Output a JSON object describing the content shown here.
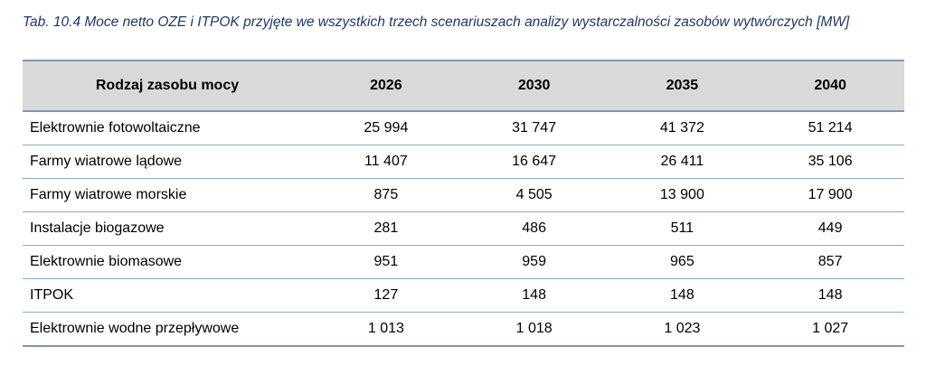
{
  "caption": "Tab. 10.4 Moce netto OZE i ITPOK przyjęte we wszystkich trzech scenariuszach analizy wystarczalności zasobów wytwórczych [MW]",
  "table": {
    "headers": [
      "Rodzaj zasobu mocy",
      "2026",
      "2030",
      "2035",
      "2040"
    ],
    "rows": [
      [
        "Elektrownie fotowoltaiczne",
        "25 994",
        "31 747",
        "41 372",
        "51 214"
      ],
      [
        "Farmy wiatrowe lądowe",
        "11 407",
        "16 647",
        "26 411",
        "35 106"
      ],
      [
        "Farmy wiatrowe morskie",
        "875",
        "4 505",
        "13 900",
        "17 900"
      ],
      [
        "Instalacje biogazowe",
        "281",
        "486",
        "511",
        "449"
      ],
      [
        "Elektrownie biomasowe",
        "951",
        "959",
        "965",
        "857"
      ],
      [
        "ITPOK",
        "127",
        "148",
        "148",
        "148"
      ],
      [
        "Elektrownie wodne przepływowe",
        "1 013",
        "1 018",
        "1 023",
        "1 027"
      ]
    ]
  },
  "colors": {
    "caption_text": "#1f3864",
    "header_background": "#d9d9d9",
    "rule_color": "#8ea9c9"
  }
}
